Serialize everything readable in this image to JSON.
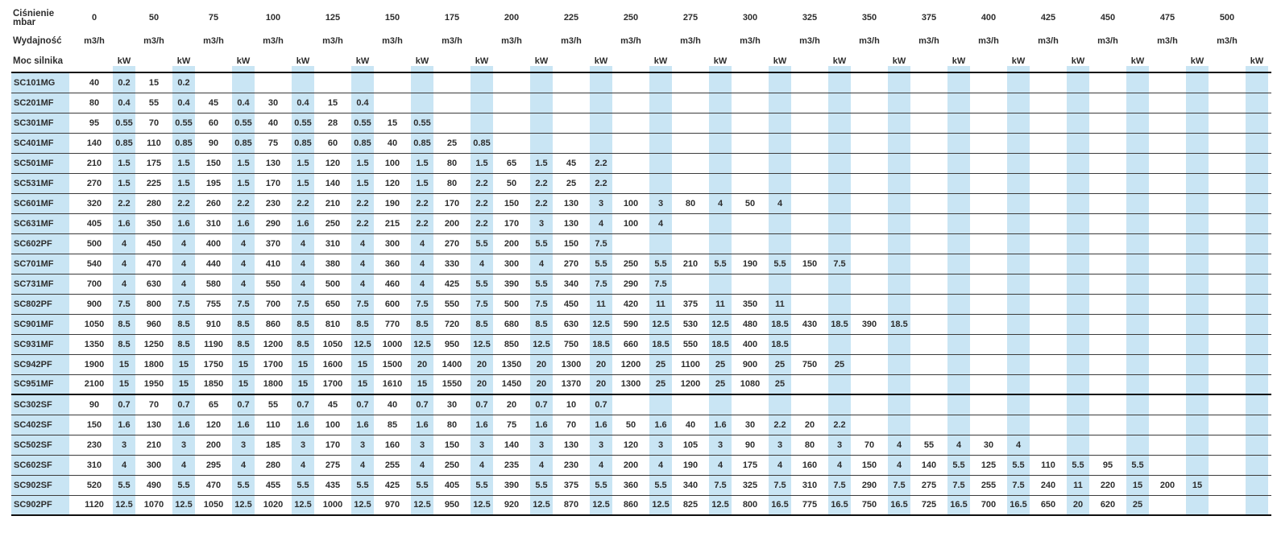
{
  "table": {
    "type": "table",
    "headers": {
      "pressure_label": "Ciśnienie",
      "pressure_unit_label": "mbar",
      "flow_label": "Wydajność",
      "flow_unit": "m3/h",
      "power_label": "Moc silnika",
      "power_unit": "kW"
    },
    "pressures": [
      "0",
      "50",
      "75",
      "100",
      "125",
      "150",
      "175",
      "200",
      "225",
      "250",
      "275",
      "300",
      "325",
      "350",
      "375",
      "400",
      "425",
      "450",
      "475",
      "500"
    ],
    "rows": [
      {
        "model": "SC101MG",
        "values": [
          "40",
          "0.2",
          "15",
          "0.2"
        ]
      },
      {
        "model": "SC201MF",
        "values": [
          "80",
          "0.4",
          "55",
          "0.4",
          "45",
          "0.4",
          "30",
          "0.4",
          "15",
          "0.4"
        ]
      },
      {
        "model": "SC301MF",
        "values": [
          "95",
          "0.55",
          "70",
          "0.55",
          "60",
          "0.55",
          "40",
          "0.55",
          "28",
          "0.55",
          "15",
          "0.55"
        ]
      },
      {
        "model": "SC401MF",
        "values": [
          "140",
          "0.85",
          "110",
          "0.85",
          "90",
          "0.85",
          "75",
          "0.85",
          "60",
          "0.85",
          "40",
          "0.85",
          "25",
          "0.85"
        ]
      },
      {
        "model": "SC501MF",
        "values": [
          "210",
          "1.5",
          "175",
          "1.5",
          "150",
          "1.5",
          "130",
          "1.5",
          "120",
          "1.5",
          "100",
          "1.5",
          "80",
          "1.5",
          "65",
          "1.5",
          "45",
          "2.2"
        ]
      },
      {
        "model": "SC531MF",
        "values": [
          "270",
          "1.5",
          "225",
          "1.5",
          "195",
          "1.5",
          "170",
          "1.5",
          "140",
          "1.5",
          "120",
          "1.5",
          "80",
          "2.2",
          "50",
          "2.2",
          "25",
          "2.2"
        ]
      },
      {
        "model": "SC601MF",
        "values": [
          "320",
          "2.2",
          "280",
          "2.2",
          "260",
          "2.2",
          "230",
          "2.2",
          "210",
          "2.2",
          "190",
          "2.2",
          "170",
          "2.2",
          "150",
          "2.2",
          "130",
          "3",
          "100",
          "3",
          "80",
          "4",
          "50",
          "4"
        ]
      },
      {
        "model": "SC631MF",
        "values": [
          "405",
          "1.6",
          "350",
          "1.6",
          "310",
          "1.6",
          "290",
          "1.6",
          "250",
          "2.2",
          "215",
          "2.2",
          "200",
          "2.2",
          "170",
          "3",
          "130",
          "4",
          "100",
          "4"
        ]
      },
      {
        "model": "SC602PF",
        "values": [
          "500",
          "4",
          "450",
          "4",
          "400",
          "4",
          "370",
          "4",
          "310",
          "4",
          "300",
          "4",
          "270",
          "5.5",
          "200",
          "5.5",
          "150",
          "7.5"
        ]
      },
      {
        "model": "SC701MF",
        "values": [
          "540",
          "4",
          "470",
          "4",
          "440",
          "4",
          "410",
          "4",
          "380",
          "4",
          "360",
          "4",
          "330",
          "4",
          "300",
          "4",
          "270",
          "5.5",
          "250",
          "5.5",
          "210",
          "5.5",
          "190",
          "5.5",
          "150",
          "7.5"
        ]
      },
      {
        "model": "SC731MF",
        "values": [
          "700",
          "4",
          "630",
          "4",
          "580",
          "4",
          "550",
          "4",
          "500",
          "4",
          "460",
          "4",
          "425",
          "5.5",
          "390",
          "5.5",
          "340",
          "7.5",
          "290",
          "7.5"
        ]
      },
      {
        "model": "SC802PF",
        "values": [
          "900",
          "7.5",
          "800",
          "7.5",
          "755",
          "7.5",
          "700",
          "7.5",
          "650",
          "7.5",
          "600",
          "7.5",
          "550",
          "7.5",
          "500",
          "7.5",
          "450",
          "11",
          "420",
          "11",
          "375",
          "11",
          "350",
          "11"
        ]
      },
      {
        "model": "SC901MF",
        "values": [
          "1050",
          "8.5",
          "960",
          "8.5",
          "910",
          "8.5",
          "860",
          "8.5",
          "810",
          "8.5",
          "770",
          "8.5",
          "720",
          "8.5",
          "680",
          "8.5",
          "630",
          "12.5",
          "590",
          "12.5",
          "530",
          "12.5",
          "480",
          "18.5",
          "430",
          "18.5",
          "390",
          "18.5"
        ]
      },
      {
        "model": "SC931MF",
        "values": [
          "1350",
          "8.5",
          "1250",
          "8.5",
          "1190",
          "8.5",
          "1200",
          "8.5",
          "1050",
          "12.5",
          "1000",
          "12.5",
          "950",
          "12.5",
          "850",
          "12.5",
          "750",
          "18.5",
          "660",
          "18.5",
          "550",
          "18.5",
          "400",
          "18.5"
        ]
      },
      {
        "model": "SC942PF",
        "values": [
          "1900",
          "15",
          "1800",
          "15",
          "1750",
          "15",
          "1700",
          "15",
          "1600",
          "15",
          "1500",
          "20",
          "1400",
          "20",
          "1350",
          "20",
          "1300",
          "20",
          "1200",
          "25",
          "1100",
          "25",
          "900",
          "25",
          "750",
          "25"
        ]
      },
      {
        "model": "SC951MF",
        "values": [
          "2100",
          "15",
          "1950",
          "15",
          "1850",
          "15",
          "1800",
          "15",
          "1700",
          "15",
          "1610",
          "15",
          "1550",
          "20",
          "1450",
          "20",
          "1370",
          "20",
          "1300",
          "25",
          "1200",
          "25",
          "1080",
          "25"
        ]
      },
      {
        "model": "SC302SF",
        "values": [
          "90",
          "0.7",
          "70",
          "0.7",
          "65",
          "0.7",
          "55",
          "0.7",
          "45",
          "0.7",
          "40",
          "0.7",
          "30",
          "0.7",
          "20",
          "0.7",
          "10",
          "0.7"
        ]
      },
      {
        "model": "SC402SF",
        "values": [
          "150",
          "1.6",
          "130",
          "1.6",
          "120",
          "1.6",
          "110",
          "1.6",
          "100",
          "1.6",
          "85",
          "1.6",
          "80",
          "1.6",
          "75",
          "1.6",
          "70",
          "1.6",
          "50",
          "1.6",
          "40",
          "1.6",
          "30",
          "2.2",
          "20",
          "2.2"
        ]
      },
      {
        "model": "SC502SF",
        "values": [
          "230",
          "3",
          "210",
          "3",
          "200",
          "3",
          "185",
          "3",
          "170",
          "3",
          "160",
          "3",
          "150",
          "3",
          "140",
          "3",
          "130",
          "3",
          "120",
          "3",
          "105",
          "3",
          "90",
          "3",
          "80",
          "3",
          "70",
          "4",
          "55",
          "4",
          "30",
          "4"
        ]
      },
      {
        "model": "SC602SF",
        "values": [
          "310",
          "4",
          "300",
          "4",
          "295",
          "4",
          "280",
          "4",
          "275",
          "4",
          "255",
          "4",
          "250",
          "4",
          "235",
          "4",
          "230",
          "4",
          "200",
          "4",
          "190",
          "4",
          "175",
          "4",
          "160",
          "4",
          "150",
          "4",
          "140",
          "5.5",
          "125",
          "5.5",
          "110",
          "5.5",
          "95",
          "5.5"
        ]
      },
      {
        "model": "SC902SF",
        "values": [
          "520",
          "5.5",
          "490",
          "5.5",
          "470",
          "5.5",
          "455",
          "5.5",
          "435",
          "5.5",
          "425",
          "5.5",
          "405",
          "5.5",
          "390",
          "5.5",
          "375",
          "5.5",
          "360",
          "5.5",
          "340",
          "7.5",
          "325",
          "7.5",
          "310",
          "7.5",
          "290",
          "7.5",
          "275",
          "7.5",
          "255",
          "7.5",
          "240",
          "11",
          "220",
          "15",
          "200",
          "15"
        ]
      },
      {
        "model": "SC902PF",
        "values": [
          "1120",
          "12.5",
          "1070",
          "12.5",
          "1050",
          "12.5",
          "1020",
          "12.5",
          "1000",
          "12.5",
          "970",
          "12.5",
          "950",
          "12.5",
          "920",
          "12.5",
          "870",
          "12.5",
          "860",
          "12.5",
          "825",
          "12.5",
          "800",
          "16.5",
          "775",
          "16.5",
          "750",
          "16.5",
          "725",
          "16.5",
          "700",
          "16.5",
          "650",
          "20",
          "620",
          "25"
        ]
      }
    ],
    "thick_separator_after": [
      "SC951MF",
      "SC902PF"
    ]
  },
  "colors": {
    "stripe_blue": "#c9e5f4",
    "text": "#2d2d2d",
    "thin_line": "#3c3c3c",
    "thick_line": "#101010"
  }
}
